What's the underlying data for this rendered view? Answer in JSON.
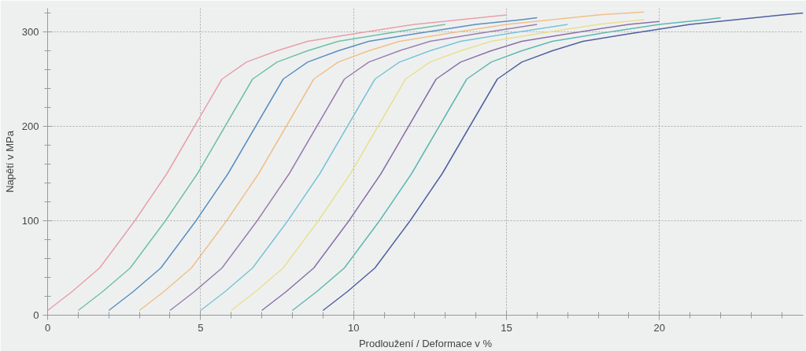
{
  "chart_data": {
    "type": "line",
    "xlabel": "Prodloužení / Deformace v %",
    "ylabel": "Napětí v MPa",
    "xlim": [
      0,
      24.7
    ],
    "ylim": [
      0,
      325
    ],
    "xticks": [
      0,
      5,
      10,
      15,
      20
    ],
    "yticks": [
      0,
      100,
      200,
      300
    ],
    "grid": true,
    "marker": "none",
    "line_style": "solid",
    "series": [
      {
        "color": "#e8a0a8",
        "x": [
          0,
          0.8,
          1.7,
          2.85,
          3.9,
          4.8,
          5.7,
          6.5,
          7.5,
          8.5,
          10,
          12,
          13.5,
          15
        ],
        "values": [
          5,
          25,
          50,
          100,
          150,
          200,
          250,
          268,
          280,
          290,
          298,
          308,
          313,
          318
        ]
      },
      {
        "color": "#70c0a8",
        "x": [
          1,
          1.8,
          2.7,
          3.85,
          4.9,
          5.8,
          6.7,
          7.5,
          8.5,
          9.5,
          11,
          13
        ],
        "values": [
          5,
          25,
          50,
          100,
          150,
          200,
          250,
          268,
          280,
          290,
          298,
          308
        ]
      },
      {
        "color": "#5a8fc0",
        "x": [
          2,
          2.8,
          3.7,
          4.85,
          5.9,
          6.8,
          7.7,
          8.5,
          9.5,
          10.5,
          12,
          14,
          15.5,
          16
        ],
        "values": [
          5,
          25,
          50,
          100,
          150,
          200,
          250,
          268,
          280,
          290,
          298,
          308,
          313,
          315
        ]
      },
      {
        "color": "#f0c088",
        "x": [
          3,
          3.8,
          4.7,
          5.85,
          6.9,
          7.8,
          8.7,
          9.5,
          10.5,
          11.5,
          13,
          15,
          16.5,
          18,
          19.5
        ],
        "values": [
          5,
          25,
          50,
          100,
          150,
          200,
          250,
          268,
          280,
          290,
          298,
          308,
          313,
          318,
          321
        ]
      },
      {
        "color": "#9a7fb0",
        "x": [
          4,
          4.8,
          5.7,
          6.85,
          7.9,
          8.8,
          9.7,
          10.5,
          11.5,
          12.5,
          14,
          16
        ],
        "values": [
          5,
          25,
          50,
          100,
          150,
          200,
          250,
          268,
          280,
          290,
          298,
          308
        ]
      },
      {
        "color": "#78c4d8",
        "x": [
          5,
          5.8,
          6.7,
          7.85,
          8.9,
          9.8,
          10.7,
          11.5,
          12.5,
          13.5,
          15,
          17
        ],
        "values": [
          5,
          25,
          50,
          100,
          150,
          200,
          250,
          268,
          280,
          290,
          298,
          308
        ]
      },
      {
        "color": "#e8e090",
        "x": [
          6,
          6.8,
          7.7,
          8.85,
          9.9,
          10.8,
          11.7,
          12.5,
          13.5,
          14.5,
          16,
          18,
          19.5
        ],
        "values": [
          5,
          25,
          50,
          100,
          150,
          200,
          250,
          268,
          280,
          290,
          298,
          308,
          313
        ]
      },
      {
        "color": "#8a70a8",
        "x": [
          7,
          7.8,
          8.7,
          9.85,
          10.9,
          11.8,
          12.7,
          13.5,
          14.5,
          15.5,
          17,
          19,
          20
        ],
        "values": [
          5,
          25,
          50,
          100,
          150,
          200,
          250,
          268,
          280,
          290,
          298,
          308,
          311
        ]
      },
      {
        "color": "#60b8b0",
        "x": [
          8,
          8.8,
          9.7,
          10.85,
          11.9,
          12.8,
          13.7,
          14.5,
          15.5,
          16.5,
          18,
          20,
          21.5,
          22
        ],
        "values": [
          5,
          25,
          50,
          100,
          150,
          200,
          250,
          268,
          280,
          290,
          298,
          308,
          313,
          315
        ]
      },
      {
        "color": "#5060a0",
        "x": [
          9,
          9.8,
          10.7,
          11.85,
          12.9,
          13.8,
          14.7,
          15.5,
          16.5,
          17.5,
          19,
          21,
          22.5,
          24,
          24.7
        ],
        "values": [
          5,
          25,
          50,
          100,
          150,
          200,
          250,
          268,
          280,
          290,
          298,
          308,
          313,
          318,
          320
        ]
      }
    ]
  }
}
